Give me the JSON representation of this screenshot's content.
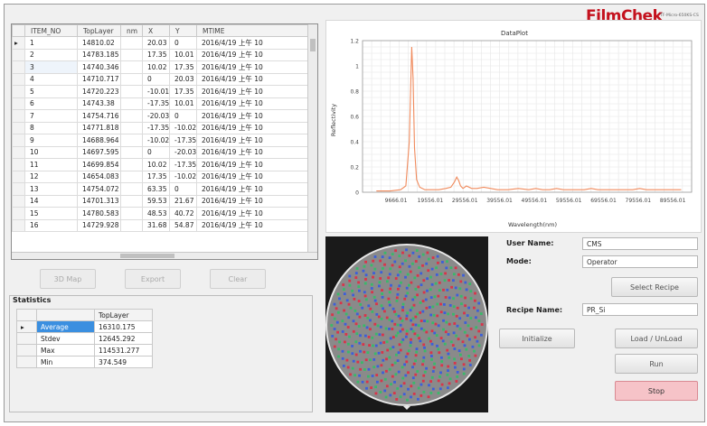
{
  "brand": {
    "logo": "FilmChek",
    "subtitle": "TF-Micro-650KS-CS"
  },
  "grid": {
    "columns": [
      "ITEM_NO",
      "TopLayer",
      "nm",
      "X",
      "Y",
      "MTIME"
    ],
    "rows": [
      [
        "1",
        "14810.02",
        "",
        "20.03",
        "0",
        "2016/4/19 上午 10"
      ],
      [
        "2",
        "14783.185",
        "",
        "17.35",
        "10.01",
        "2016/4/19 上午 10"
      ],
      [
        "3",
        "14740.346",
        "",
        "10.02",
        "17.35",
        "2016/4/19 上午 10"
      ],
      [
        "4",
        "14710.717",
        "",
        "0",
        "20.03",
        "2016/4/19 上午 10"
      ],
      [
        "5",
        "14720.223",
        "",
        "-10.01",
        "17.35",
        "2016/4/19 上午 10"
      ],
      [
        "6",
        "14743.38",
        "",
        "-17.35",
        "10.01",
        "2016/4/19 上午 10"
      ],
      [
        "7",
        "14754.716",
        "",
        "-20.03",
        "0",
        "2016/4/19 上午 10"
      ],
      [
        "8",
        "14771.818",
        "",
        "-17.35",
        "-10.02",
        "2016/4/19 上午 10"
      ],
      [
        "9",
        "14688.964",
        "",
        "-10.02",
        "-17.35",
        "2016/4/19 上午 10"
      ],
      [
        "10",
        "14697.595",
        "",
        "0",
        "-20.03",
        "2016/4/19 上午 10"
      ],
      [
        "11",
        "14699.854",
        "",
        "10.02",
        "-17.35",
        "2016/4/19 上午 10"
      ],
      [
        "12",
        "14654.083",
        "",
        "17.35",
        "-10.02",
        "2016/4/19 上午 10"
      ],
      [
        "13",
        "14754.072",
        "",
        "63.35",
        "0",
        "2016/4/19 上午 10"
      ],
      [
        "14",
        "14701.313",
        "",
        "59.53",
        "21.67",
        "2016/4/19 上午 10"
      ],
      [
        "15",
        "14780.583",
        "",
        "48.53",
        "40.72",
        "2016/4/19 上午 10"
      ],
      [
        "16",
        "14729.928",
        "",
        "31.68",
        "54.87",
        "2016/4/19 上午 10"
      ]
    ]
  },
  "buttons": {
    "map3d": "3D Map",
    "export": "Export",
    "clear": "Clear",
    "select_recipe": "Select Recipe",
    "initialize": "Initialize",
    "load_unload": "Load / UnLoad",
    "run": "Run",
    "stop": "Stop"
  },
  "statistics": {
    "title": "Statistics",
    "column": "TopLayer",
    "rows": [
      {
        "label": "Average",
        "value": "16310.175"
      },
      {
        "label": "Stdev",
        "value": "12645.292"
      },
      {
        "label": "Max",
        "value": "114531.277"
      },
      {
        "label": "Min",
        "value": "374.549"
      }
    ]
  },
  "form": {
    "user_name_label": "User Name:",
    "user_name": "CMS",
    "mode_label": "Mode:",
    "mode": "Operator",
    "recipe_label": "Recipe Name:",
    "recipe": "PR_Si"
  },
  "chart_data": {
    "type": "line",
    "title": "DataPlot",
    "xlabel": "Wavelength(nm)",
    "ylabel": "Reflectivity",
    "x_ticks": [
      "9666.01",
      "19556.01",
      "29556.01",
      "39556.01",
      "49556.01",
      "59556.01",
      "69556.01",
      "79556.01",
      "89556.01"
    ],
    "y_ticks": [
      "0",
      "0.2",
      "0.4",
      "0.6",
      "0.8",
      "1",
      "1.2"
    ],
    "ylim": [
      0,
      1.2
    ],
    "xlim": [
      0,
      95000
    ],
    "grid": true,
    "series": [
      {
        "color": "#f08a5c",
        "x": [
          4000,
          8000,
          11000,
          12500,
          13500,
          14200,
          14600,
          15000,
          15600,
          16500,
          18000,
          20000,
          22000,
          24000,
          25500,
          26500,
          27200,
          27800,
          28300,
          29000,
          30000,
          31500,
          33000,
          35000,
          37000,
          39000,
          42000,
          45000,
          48000,
          50000,
          52000,
          54000,
          56000,
          58000,
          60000,
          62000,
          64000,
          66000,
          68000,
          70000,
          72000,
          74000,
          76000,
          78000,
          80000,
          82000,
          84000,
          86000,
          88000,
          90000,
          92000
        ],
        "values": [
          0.01,
          0.01,
          0.02,
          0.05,
          0.4,
          1.15,
          0.9,
          0.35,
          0.1,
          0.04,
          0.02,
          0.02,
          0.02,
          0.03,
          0.04,
          0.08,
          0.12,
          0.09,
          0.05,
          0.03,
          0.05,
          0.03,
          0.03,
          0.04,
          0.03,
          0.02,
          0.02,
          0.03,
          0.02,
          0.03,
          0.02,
          0.02,
          0.03,
          0.02,
          0.02,
          0.02,
          0.02,
          0.03,
          0.02,
          0.02,
          0.02,
          0.02,
          0.02,
          0.02,
          0.03,
          0.02,
          0.02,
          0.02,
          0.02,
          0.02,
          0.02
        ]
      }
    ]
  }
}
